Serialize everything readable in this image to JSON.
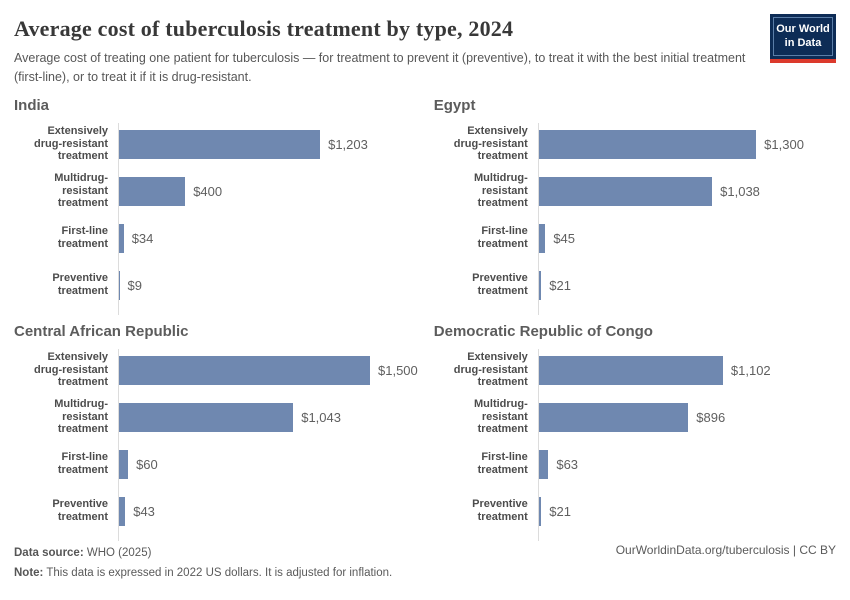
{
  "header": {
    "title": "Average cost of tuberculosis treatment by type, 2024",
    "subtitle": "Average cost of treating one patient for tuberculosis — for treatment to prevent it (preventive), to treat it with the best initial treatment (first-line), or to treat it if it is drug-resistant.",
    "logo": {
      "line1": "Our World",
      "line2": "in Data"
    }
  },
  "chart_data": {
    "type": "bar",
    "orientation": "horizontal",
    "unit": "US$ (2022 dollars)",
    "shared_x_max": 1500,
    "grid": false,
    "categories": [
      "Extensively drug-resistant treatment",
      "Multidrug-resistant treatment",
      "First-line treatment",
      "Preventive treatment"
    ],
    "category_label_lines": [
      [
        "Extensively",
        "drug-resistant",
        "treatment"
      ],
      [
        "Multidrug-resistant",
        "treatment"
      ],
      [
        "First-line treatment"
      ],
      [
        "Preventive",
        "treatment"
      ]
    ],
    "panels": [
      {
        "title": "India",
        "values": [
          1203,
          400,
          34,
          9
        ],
        "value_labels": [
          "$1,203",
          "$400",
          "$34",
          "$9"
        ]
      },
      {
        "title": "Egypt",
        "values": [
          1300,
          1038,
          45,
          21
        ],
        "value_labels": [
          "$1,300",
          "$1,038",
          "$45",
          "$21"
        ]
      },
      {
        "title": "Central African Republic",
        "values": [
          1500,
          1043,
          60,
          43
        ],
        "value_labels": [
          "$1,500",
          "$1,043",
          "$60",
          "$43"
        ]
      },
      {
        "title": "Democratic Republic of Congo",
        "values": [
          1102,
          896,
          63,
          21
        ],
        "value_labels": [
          "$1,102",
          "$896",
          "$63",
          "$21"
        ]
      }
    ],
    "bar_color": "#6f88b0"
  },
  "footer": {
    "data_source_label": "Data source:",
    "data_source_value": "WHO (2025)",
    "note_label": "Note:",
    "note_value": "This data is expressed in 2022 US dollars. It is adjusted for inflation.",
    "link": "OurWorldinData.org/tuberculosis | CC BY"
  }
}
